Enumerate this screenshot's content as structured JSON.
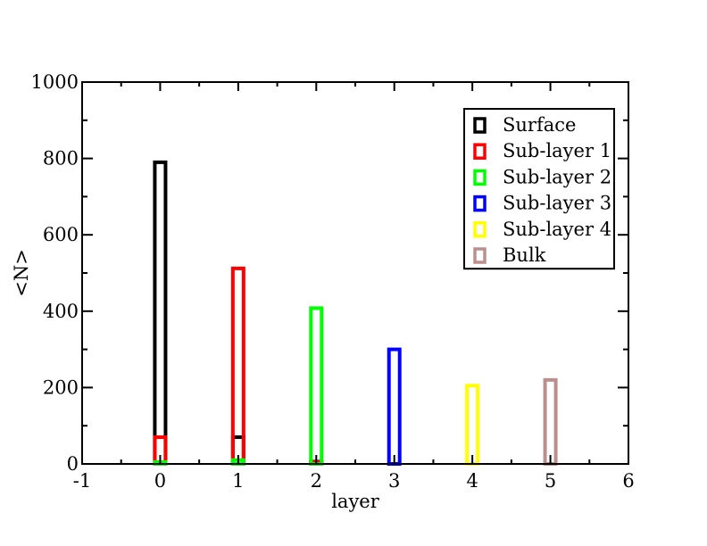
{
  "chart_data": {
    "type": "bar",
    "title": "",
    "xlabel": "layer",
    "ylabel": "<N>",
    "xlim": [
      -1,
      6
    ],
    "ylim": [
      0,
      1000
    ],
    "x_ticks": [
      "-1",
      "0",
      "1",
      "2",
      "3",
      "4",
      "5",
      "6"
    ],
    "y_ticks": [
      "0",
      "200",
      "400",
      "600",
      "800",
      "1000"
    ],
    "grid": false,
    "legend_position": "top-right",
    "series": [
      {
        "name": "Surface",
        "color": "#000000",
        "x": [
          0,
          1,
          2
        ],
        "values": [
          790,
          70,
          6
        ]
      },
      {
        "name": "Sub-layer 1",
        "color": "#ff0000",
        "x": [
          0,
          1,
          2
        ],
        "values": [
          70,
          512,
          5
        ]
      },
      {
        "name": "Sub-layer 2",
        "color": "#00ff00",
        "x": [
          0,
          1,
          2
        ],
        "values": [
          5,
          10,
          408
        ]
      },
      {
        "name": "Sub-layer 3",
        "color": "#0000ff",
        "x": [
          3
        ],
        "values": [
          300
        ]
      },
      {
        "name": "Sub-layer 4",
        "color": "#ffff00",
        "x": [
          4
        ],
        "values": [
          205
        ]
      },
      {
        "name": "Bulk",
        "color": "#bc8f8f",
        "x": [
          5
        ],
        "values": [
          220
        ]
      }
    ]
  }
}
